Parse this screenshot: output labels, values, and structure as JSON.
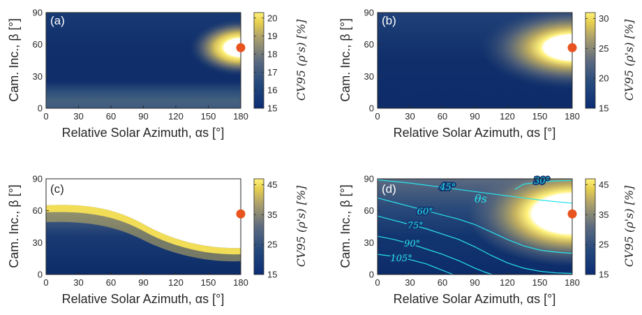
{
  "chart_data": [
    {
      "type": "heatmap",
      "panel_label": "(a)",
      "xlabel": "Relative Solar Azimuth, αs [°]",
      "ylabel": "Cam. Inc., β [°]",
      "colorbar_label": "CV95 (ρ's) [%]",
      "x_ticks": [
        0,
        30,
        60,
        90,
        120,
        150,
        180
      ],
      "y_ticks": [
        0,
        30,
        60,
        90
      ],
      "xlim": [
        0,
        180
      ],
      "ylim": [
        0,
        90
      ],
      "clim": [
        15,
        20.3
      ],
      "colorbar_ticks": [
        15,
        16,
        17,
        18,
        19,
        20
      ],
      "marker": {
        "x": 180,
        "y": 57,
        "color": "#e8531f"
      }
    },
    {
      "type": "heatmap",
      "panel_label": "(b)",
      "xlabel": "Relative Solar Azimuth, αs [°]",
      "ylabel": "Cam. Inc., β [°]",
      "colorbar_label": "CV95 (ρ's) [%]",
      "x_ticks": [
        0,
        30,
        60,
        90,
        120,
        150,
        180
      ],
      "y_ticks": [
        0,
        30,
        60,
        90
      ],
      "xlim": [
        0,
        180
      ],
      "ylim": [
        0,
        90
      ],
      "clim": [
        15,
        31
      ],
      "colorbar_ticks": [
        15,
        20,
        25,
        30
      ],
      "marker": {
        "x": 180,
        "y": 57,
        "color": "#e8531f"
      }
    },
    {
      "type": "heatmap",
      "panel_label": "(c)",
      "xlabel": "Relative Solar Azimuth, αs [°]",
      "ylabel": "Cam. Inc., β [°]",
      "colorbar_label": "CV95 (ρ's) [%]",
      "x_ticks": [
        0,
        30,
        60,
        90,
        120,
        150,
        180
      ],
      "y_ticks": [
        0,
        30,
        60,
        90
      ],
      "xlim": [
        0,
        180
      ],
      "ylim": [
        0,
        90
      ],
      "clim": [
        15,
        47
      ],
      "colorbar_ticks": [
        15,
        25,
        35,
        45
      ],
      "marker": {
        "x": 180,
        "y": 57,
        "color": "#e8531f"
      }
    },
    {
      "type": "heatmap",
      "panel_label": "(d)",
      "xlabel": "Relative Solar Azimuth, αs [°]",
      "ylabel": "Cam. Inc., β [°]",
      "colorbar_label": "CV95 (ρ's) [%]",
      "x_ticks": [
        0,
        30,
        60,
        90,
        120,
        150,
        180
      ],
      "y_ticks": [
        0,
        30,
        60,
        90
      ],
      "xlim": [
        0,
        180
      ],
      "ylim": [
        0,
        90
      ],
      "clim": [
        15,
        47
      ],
      "colorbar_ticks": [
        15,
        25,
        35,
        45
      ],
      "marker": {
        "x": 180,
        "y": 57,
        "color": "#e8531f"
      },
      "contour_series_label": "θs",
      "contours": [
        {
          "label": "30°",
          "color": "#27e3ee",
          "points": [
            [
              127,
              80
            ],
            [
              135,
              85
            ],
            [
              150,
              87
            ],
            [
              165,
              88
            ],
            [
              180,
              88.5
            ]
          ]
        },
        {
          "label": "45°",
          "color": "#27e3ee",
          "points": [
            [
              0,
              89
            ],
            [
              30,
              86
            ],
            [
              60,
              82
            ],
            [
              90,
              78
            ],
            [
              120,
              74
            ],
            [
              150,
              70
            ],
            [
              170,
              68
            ],
            [
              180,
              67
            ]
          ]
        },
        {
          "label": "60°",
          "color": "#27e3ee",
          "points": [
            [
              0,
              72
            ],
            [
              15,
              68
            ],
            [
              30,
              64
            ],
            [
              45,
              60
            ],
            [
              60,
              56
            ],
            [
              75,
              52
            ],
            [
              90,
              47
            ],
            [
              105,
              40
            ],
            [
              120,
              33
            ],
            [
              135,
              27
            ],
            [
              150,
              23
            ],
            [
              165,
              21
            ],
            [
              180,
              20
            ]
          ]
        },
        {
          "label": "75°",
          "color": "#27e3ee",
          "points": [
            [
              0,
              55
            ],
            [
              15,
              51
            ],
            [
              30,
              47
            ],
            [
              45,
              43
            ],
            [
              60,
              38
            ],
            [
              75,
              33
            ],
            [
              90,
              26
            ],
            [
              105,
              18
            ],
            [
              120,
              11
            ],
            [
              135,
              6
            ],
            [
              150,
              3
            ],
            [
              165,
              1.5
            ],
            [
              180,
              1
            ]
          ]
        },
        {
          "label": "90°",
          "color": "#27e3ee",
          "points": [
            [
              0,
              36
            ],
            [
              15,
              33
            ],
            [
              30,
              29
            ],
            [
              45,
              24
            ],
            [
              60,
              19
            ],
            [
              75,
              13
            ],
            [
              90,
              6
            ],
            [
              100,
              2
            ],
            [
              106,
              0
            ]
          ]
        },
        {
          "label": "105°",
          "color": "#27e3ee",
          "points": [
            [
              0,
              19
            ],
            [
              15,
              17
            ],
            [
              30,
              14
            ],
            [
              45,
              10
            ],
            [
              55,
              6
            ],
            [
              65,
              2
            ],
            [
              70,
              0
            ]
          ]
        }
      ]
    }
  ]
}
